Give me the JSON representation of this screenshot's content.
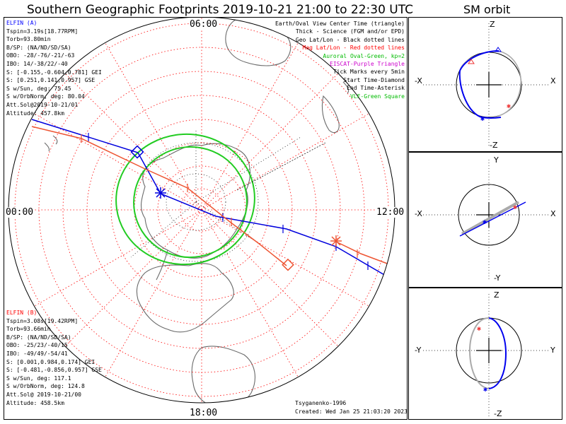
{
  "title": "Southern Geographic Footprints 2019-10-21 21:00 to 22:30 UTC",
  "sm_title": "SM orbit",
  "local_time_labels": {
    "top": "06:00",
    "left": "00:00",
    "right": "12:00",
    "bottom": "18:00"
  },
  "elfin_a": {
    "color": "#0000ff",
    "lines": [
      "ELFIN (A)",
      "Tspin=3.19s[18.77RPM]",
      "Torb=93.80min",
      "B/SP: (NA/ND/SD/SA)",
      "OBO: -28/-76/-21/-63",
      "IBO: 14/-38/22/-40",
      "S: [-0.155,-0.604,0.781] GEI",
      "S: [0.251,0.141,0.957] GSE",
      "S w/Sun, deg: 75.45",
      "S w/OrbNorm, deg: 80.04",
      "Att.Sol@2019-10-21/01",
      "Altitude: 457.8km"
    ]
  },
  "elfin_b": {
    "color": "#ff0000",
    "lines": [
      "ELFIN (B)",
      "Tspin=3.08s[19.42RPM]",
      "Torb=93.66min",
      "B/SP: (NA/ND/SD/SA)",
      "OBO: -25/23/-40/15",
      "IBO: -49/49/-54/41",
      "S: [0.001,0.984,0.174] GEI",
      "S: [-0.481,-0.856,0.957] GSE",
      "S w/Sun, deg: 117.1",
      "S w/OrbNorm, deg: 124.8",
      "Att.Sol@ 2019-10-21/00",
      "Altitude: 458.5km"
    ]
  },
  "legend": [
    {
      "text": "Earth/Oval View Center Time (triangle)",
      "color": "#000000"
    },
    {
      "text": "Thick - Science (FGM and/or EPD)",
      "color": "#000000"
    },
    {
      "text": "Geo Lat/Lon - Black dotted lines",
      "color": "#000000"
    },
    {
      "text": "Mag Lat/Lon - Red dotted lines",
      "color": "#ff0000"
    },
    {
      "text": "Auroral Oval-Green, kp=2",
      "color": "#00bb00"
    },
    {
      "text": "EISCAT-Purple Triangle",
      "color": "#cc00cc"
    },
    {
      "text": "Tick Marks every 5min",
      "color": "#000000"
    },
    {
      "text": "Start Time-Diamond",
      "color": "#000000"
    },
    {
      "text": "End Time-Asterisk",
      "color": "#000000"
    },
    {
      "text": "VLF-Green Square",
      "color": "#00bb00"
    }
  ],
  "footer": {
    "model": "Tsyganenko-1996",
    "created": "Created: Wed Jan 25 21:03:20 2023"
  },
  "sm_panels": [
    {
      "top": "Z",
      "bottom": "-Z",
      "left": "-X",
      "right": "X"
    },
    {
      "top": "Y",
      "bottom": "-Y",
      "left": "-X",
      "right": "X"
    },
    {
      "top": "Z",
      "bottom": "-Z",
      "left": "-Y",
      "right": "Y"
    }
  ]
}
